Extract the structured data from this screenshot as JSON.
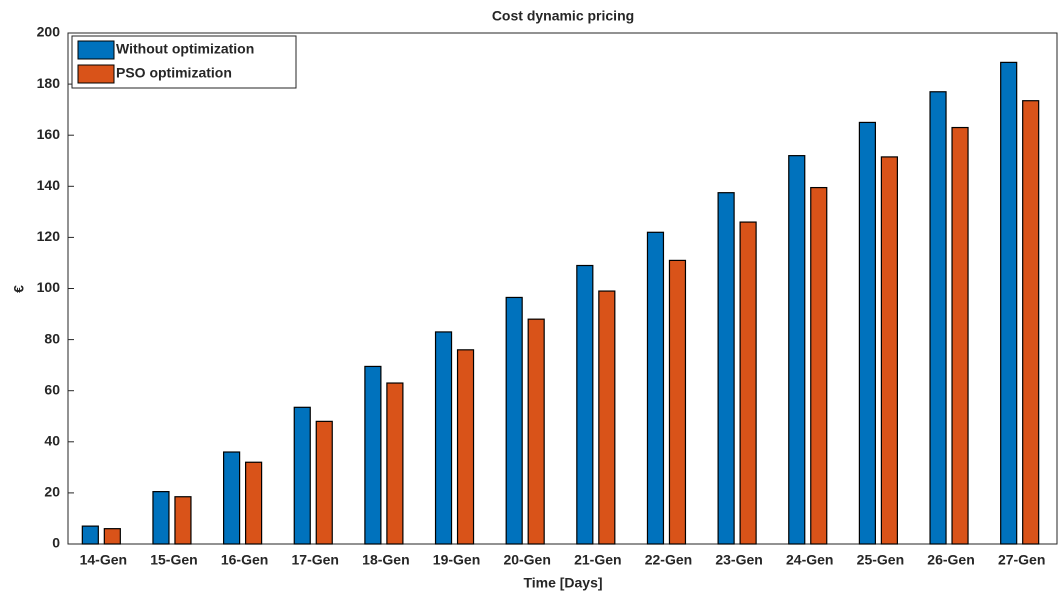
{
  "chart_data": {
    "type": "bar",
    "title": "Cost dynamic pricing",
    "x_label": "Time [Days]",
    "y_label": "€",
    "categories": [
      "14-Gen",
      "15-Gen",
      "16-Gen",
      "17-Gen",
      "18-Gen",
      "19-Gen",
      "20-Gen",
      "21-Gen",
      "22-Gen",
      "23-Gen",
      "24-Gen",
      "25-Gen",
      "26-Gen",
      "27-Gen"
    ],
    "series": [
      {
        "name": "Without optimization",
        "color": "#0072bd",
        "values": [
          7,
          20.5,
          36,
          53.5,
          69.5,
          83,
          96.5,
          109,
          122,
          137.5,
          152,
          165,
          177,
          188.5
        ]
      },
      {
        "name": "PSO optimization",
        "color": "#d95319",
        "values": [
          6,
          18.5,
          32,
          48,
          63,
          76,
          88,
          99,
          111,
          126,
          139.5,
          151.5,
          163,
          173.5
        ]
      }
    ],
    "ylim": [
      0,
      200
    ],
    "yticks": [
      0,
      20,
      40,
      60,
      80,
      100,
      120,
      140,
      160,
      180,
      200
    ],
    "grid": false,
    "legend": "upper left"
  }
}
